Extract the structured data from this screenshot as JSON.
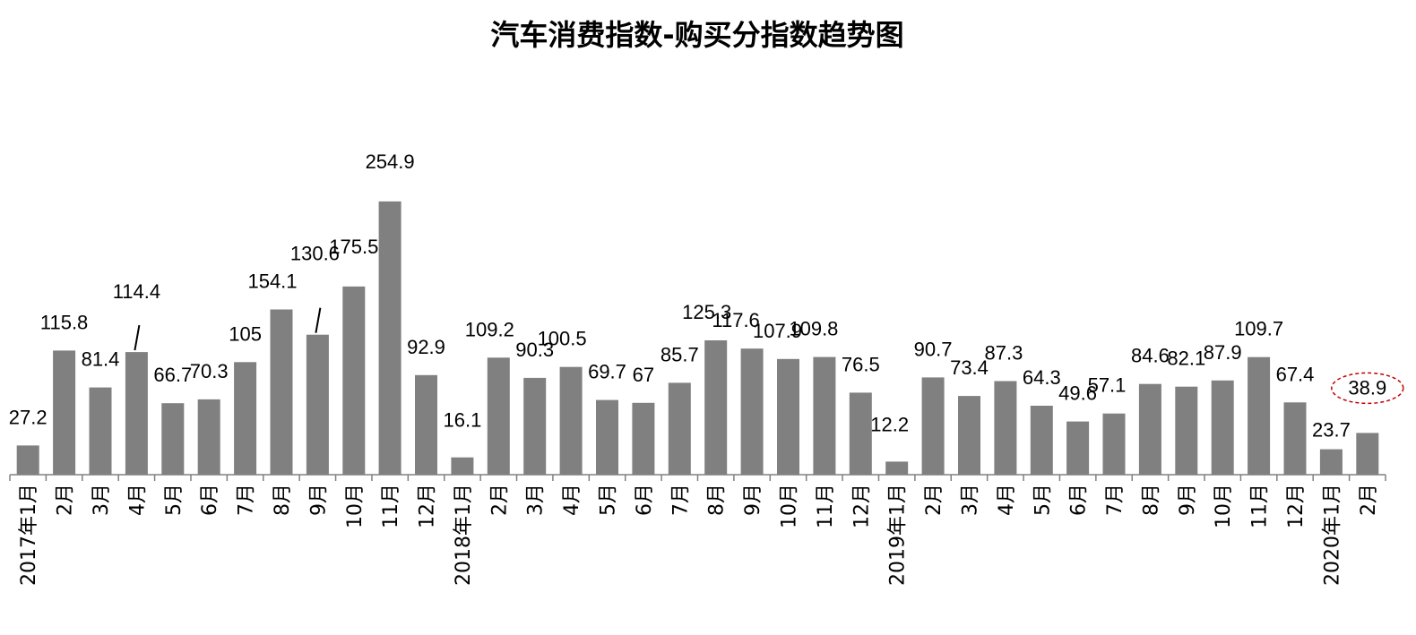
{
  "chart_data": {
    "type": "bar",
    "title": "汽车消费指数-购买分指数趋势图",
    "xlabel": "",
    "ylabel": "",
    "ylim": [
      0,
      260
    ],
    "grid": false,
    "legend": "none",
    "bar_color": "#808080",
    "highlight_color": "#c00000",
    "categories": [
      "2017年1月",
      "2月",
      "3月",
      "4月",
      "5月",
      "6月",
      "7月",
      "8月",
      "9月",
      "10月",
      "11月",
      "12月",
      "2018年1月",
      "2月",
      "3月",
      "4月",
      "5月",
      "6月",
      "7月",
      "8月",
      "9月",
      "10月",
      "11月",
      "12月",
      "2019年1月",
      "2月",
      "3月",
      "4月",
      "5月",
      "6月",
      "7月",
      "8月",
      "9月",
      "10月",
      "11月",
      "12月",
      "2020年1月",
      "2月"
    ],
    "values": [
      27.2,
      115.8,
      81.4,
      114.4,
      66.7,
      70.3,
      105,
      154.1,
      130.6,
      175.5,
      254.9,
      92.9,
      16.1,
      109.2,
      90.3,
      100.5,
      69.7,
      67,
      85.7,
      125.3,
      117.6,
      107.9,
      109.8,
      76.5,
      12.2,
      90.7,
      73.4,
      87.3,
      64.3,
      49.6,
      57.1,
      84.6,
      82.1,
      87.9,
      109.7,
      67.4,
      23.7,
      38.9
    ],
    "data_labels": [
      "27.2",
      "115.8",
      "81.4",
      "114.4",
      "66.7",
      "70.3",
      "105",
      "154.1",
      "130.6",
      "175.5",
      "254.9",
      "92.9",
      "16.1",
      "109.2",
      "90.3",
      "100.5",
      "69.7",
      "67",
      "85.7",
      "125.3",
      "117.6",
      "107.9",
      "109.8",
      "76.5",
      "12.2",
      "90.7",
      "73.4",
      "87.3",
      "64.3",
      "49.6",
      "57.1",
      "84.6",
      "82.1",
      "87.9",
      "109.7",
      "67.4",
      "23.7",
      "38.9"
    ],
    "highlighted_labels": [
      "38.9"
    ]
  }
}
